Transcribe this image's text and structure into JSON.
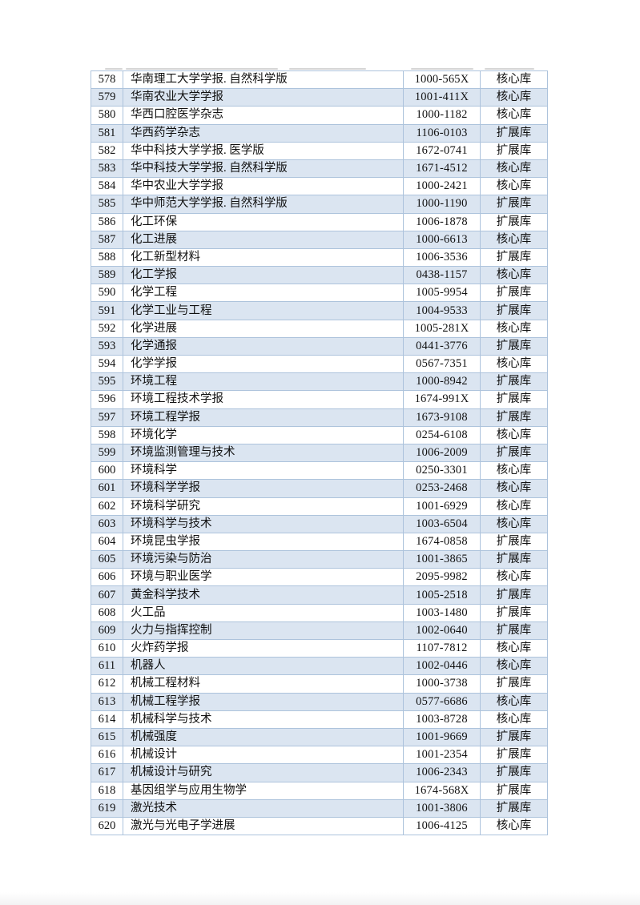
{
  "table": {
    "colors": {
      "row_alt_fill": "#dbe5f1",
      "border": "#adc3dc",
      "text": "#111111"
    },
    "columns": [
      "no",
      "name",
      "issn",
      "category"
    ],
    "category_values": [
      "核心库",
      "扩展库"
    ],
    "rows": [
      {
        "no": "578",
        "name": "华南理工大学学报. 自然科学版",
        "issn": "1000-565X",
        "category": "核心库"
      },
      {
        "no": "579",
        "name": "华南农业大学学报",
        "issn": "1001-411X",
        "category": "核心库"
      },
      {
        "no": "580",
        "name": "华西口腔医学杂志",
        "issn": "1000-1182",
        "category": "核心库"
      },
      {
        "no": "581",
        "name": "华西药学杂志",
        "issn": "1106-0103",
        "category": "扩展库"
      },
      {
        "no": "582",
        "name": "华中科技大学学报. 医学版",
        "issn": "1672-0741",
        "category": "扩展库"
      },
      {
        "no": "583",
        "name": "华中科技大学学报. 自然科学版",
        "issn": "1671-4512",
        "category": "核心库"
      },
      {
        "no": "584",
        "name": "华中农业大学学报",
        "issn": "1000-2421",
        "category": "核心库"
      },
      {
        "no": "585",
        "name": "华中师范大学学报. 自然科学版",
        "issn": "1000-1190",
        "category": "扩展库"
      },
      {
        "no": "586",
        "name": "化工环保",
        "issn": "1006-1878",
        "category": "扩展库"
      },
      {
        "no": "587",
        "name": "化工进展",
        "issn": "1000-6613",
        "category": "核心库"
      },
      {
        "no": "588",
        "name": "化工新型材料",
        "issn": "1006-3536",
        "category": "扩展库"
      },
      {
        "no": "589",
        "name": "化工学报",
        "issn": "0438-1157",
        "category": "核心库"
      },
      {
        "no": "590",
        "name": "化学工程",
        "issn": "1005-9954",
        "category": "扩展库"
      },
      {
        "no": "591",
        "name": "化学工业与工程",
        "issn": "1004-9533",
        "category": "扩展库"
      },
      {
        "no": "592",
        "name": "化学进展",
        "issn": "1005-281X",
        "category": "核心库"
      },
      {
        "no": "593",
        "name": "化学通报",
        "issn": "0441-3776",
        "category": "扩展库"
      },
      {
        "no": "594",
        "name": "化学学报",
        "issn": "0567-7351",
        "category": "核心库"
      },
      {
        "no": "595",
        "name": "环境工程",
        "issn": "1000-8942",
        "category": "扩展库"
      },
      {
        "no": "596",
        "name": "环境工程技术学报",
        "issn": "1674-991X",
        "category": "扩展库"
      },
      {
        "no": "597",
        "name": "环境工程学报",
        "issn": "1673-9108",
        "category": "扩展库"
      },
      {
        "no": "598",
        "name": "环境化学",
        "issn": "0254-6108",
        "category": "核心库"
      },
      {
        "no": "599",
        "name": "环境监测管理与技术",
        "issn": "1006-2009",
        "category": "扩展库"
      },
      {
        "no": "600",
        "name": "环境科学",
        "issn": "0250-3301",
        "category": "核心库"
      },
      {
        "no": "601",
        "name": "环境科学学报",
        "issn": "0253-2468",
        "category": "核心库"
      },
      {
        "no": "602",
        "name": "环境科学研究",
        "issn": "1001-6929",
        "category": "核心库"
      },
      {
        "no": "603",
        "name": "环境科学与技术",
        "issn": "1003-6504",
        "category": "核心库"
      },
      {
        "no": "604",
        "name": "环境昆虫学报",
        "issn": "1674-0858",
        "category": "扩展库"
      },
      {
        "no": "605",
        "name": "环境污染与防治",
        "issn": "1001-3865",
        "category": "扩展库"
      },
      {
        "no": "606",
        "name": "环境与职业医学",
        "issn": "2095-9982",
        "category": "核心库"
      },
      {
        "no": "607",
        "name": "黄金科学技术",
        "issn": "1005-2518",
        "category": "扩展库"
      },
      {
        "no": "608",
        "name": "火工品",
        "issn": "1003-1480",
        "category": "扩展库"
      },
      {
        "no": "609",
        "name": "火力与指挥控制",
        "issn": "1002-0640",
        "category": "扩展库"
      },
      {
        "no": "610",
        "name": "火炸药学报",
        "issn": "1107-7812",
        "category": "核心库"
      },
      {
        "no": "611",
        "name": "机器人",
        "issn": "1002-0446",
        "category": "核心库"
      },
      {
        "no": "612",
        "name": "机械工程材料",
        "issn": "1000-3738",
        "category": "扩展库"
      },
      {
        "no": "613",
        "name": "机械工程学报",
        "issn": "0577-6686",
        "category": "核心库"
      },
      {
        "no": "614",
        "name": "机械科学与技术",
        "issn": "1003-8728",
        "category": "核心库"
      },
      {
        "no": "615",
        "name": "机械强度",
        "issn": "1001-9669",
        "category": "扩展库"
      },
      {
        "no": "616",
        "name": "机械设计",
        "issn": "1001-2354",
        "category": "扩展库"
      },
      {
        "no": "617",
        "name": "机械设计与研究",
        "issn": "1006-2343",
        "category": "扩展库"
      },
      {
        "no": "618",
        "name": "基因组学与应用生物学",
        "issn": "1674-568X",
        "category": "扩展库"
      },
      {
        "no": "619",
        "name": "激光技术",
        "issn": "1001-3806",
        "category": "扩展库"
      },
      {
        "no": "620",
        "name": "激光与光电子学进展",
        "issn": "1006-4125",
        "category": "核心库"
      }
    ]
  }
}
